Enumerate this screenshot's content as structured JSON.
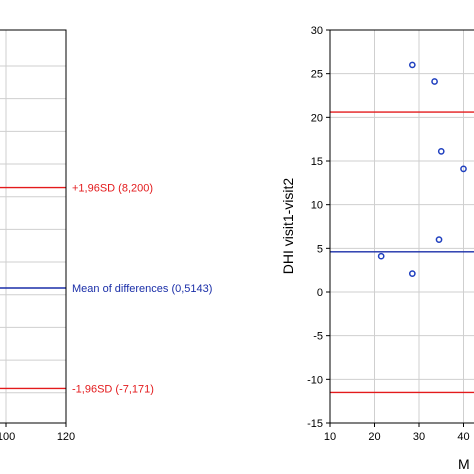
{
  "chart_data": [
    {
      "type": "scatter",
      "title": "",
      "xlabel": "",
      "ylabel": "",
      "xlim": [
        null,
        120
      ],
      "x_ticks": [
        "100",
        "120"
      ],
      "grid": true,
      "reference_lines": [
        {
          "label": "+1,96SD (8,200)",
          "color": "#e31a1c",
          "y": 8.2
        },
        {
          "label": "Mean of differences (0,5143)",
          "color": "#1a2ea8",
          "y": 0.5143
        },
        {
          "label": "-1,96SD (-7,171)",
          "color": "#e31a1c",
          "y": -7.171
        }
      ]
    },
    {
      "type": "scatter",
      "title": "",
      "xlabel": "M",
      "ylabel": "DHI visit1-visit2",
      "xlim": [
        10,
        null
      ],
      "ylim": [
        -15,
        30
      ],
      "x_ticks": [
        "10",
        "20",
        "30",
        "40"
      ],
      "y_ticks": [
        "30",
        "25",
        "20",
        "15",
        "10",
        "5",
        "0",
        "-5",
        "-10",
        "-15"
      ],
      "grid": true,
      "reference_lines": [
        {
          "color": "#e31a1c",
          "y": 20.6
        },
        {
          "color": "#1a2ea8",
          "y": 4.6
        },
        {
          "color": "#e31a1c",
          "y": -11.5
        }
      ],
      "series": [
        {
          "marker": "open-circle",
          "color": "#1f3fbf",
          "points": [
            {
              "x": 21.5,
              "y": 4.1
            },
            {
              "x": 28.5,
              "y": 26.0
            },
            {
              "x": 28.5,
              "y": 2.1
            },
            {
              "x": 33.5,
              "y": 24.1
            },
            {
              "x": 34.5,
              "y": 6.0
            },
            {
              "x": 35.0,
              "y": 16.1
            },
            {
              "x": 40.0,
              "y": 14.1
            }
          ]
        }
      ]
    }
  ]
}
